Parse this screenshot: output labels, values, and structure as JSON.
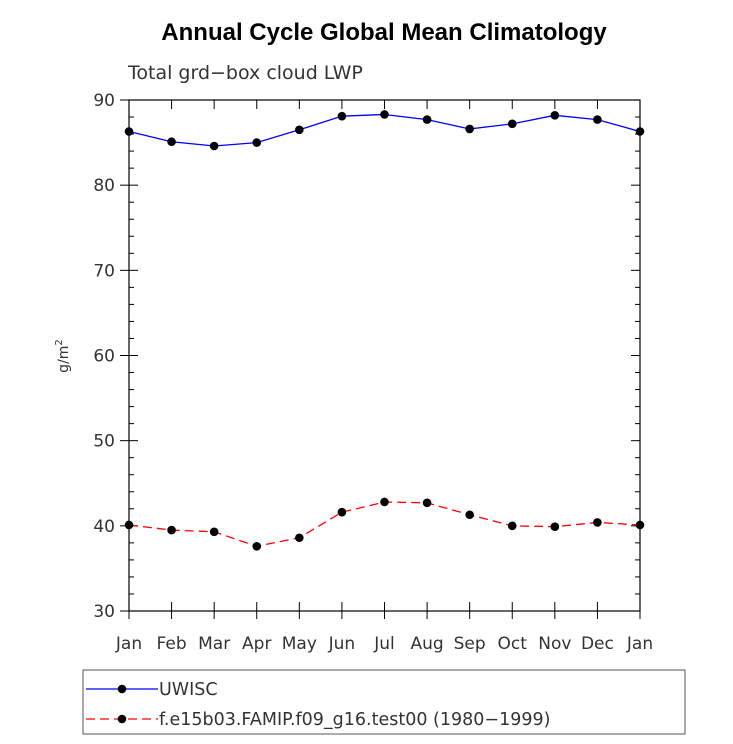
{
  "chart_data": {
    "type": "line",
    "title": "Annual Cycle Global Mean Climatology",
    "subtitle": "Total grd−box cloud LWP",
    "ylabel": "g/m",
    "ylabel_sup": "2",
    "xlabel": "",
    "ylim": [
      30,
      90
    ],
    "yticks": [
      30,
      40,
      50,
      60,
      70,
      80,
      90
    ],
    "ytick_labels": [
      "30",
      "40",
      "50",
      "60",
      "70",
      "80",
      "90"
    ],
    "categories": [
      "Jan",
      "Feb",
      "Mar",
      "Apr",
      "May",
      "Jun",
      "Jul",
      "Aug",
      "Sep",
      "Oct",
      "Nov",
      "Dec",
      "Jan"
    ],
    "grid": false,
    "legend_position": "bottom",
    "series": [
      {
        "name": "UWISC",
        "color": "#0000ff",
        "dash": "solid",
        "marker": "circle",
        "values": [
          86.3,
          85.1,
          84.6,
          85.0,
          86.5,
          88.1,
          88.3,
          87.7,
          86.6,
          87.2,
          88.2,
          87.7,
          86.3
        ]
      },
      {
        "name": "f.e15b03.FAMIP.f09_g16.test00 (1980−1999)",
        "color": "#ff0000",
        "dash": "dashed",
        "marker": "circle",
        "values": [
          40.1,
          39.5,
          39.3,
          37.6,
          38.6,
          41.6,
          42.8,
          42.7,
          41.3,
          40.0,
          39.9,
          40.4,
          40.1
        ]
      }
    ]
  }
}
